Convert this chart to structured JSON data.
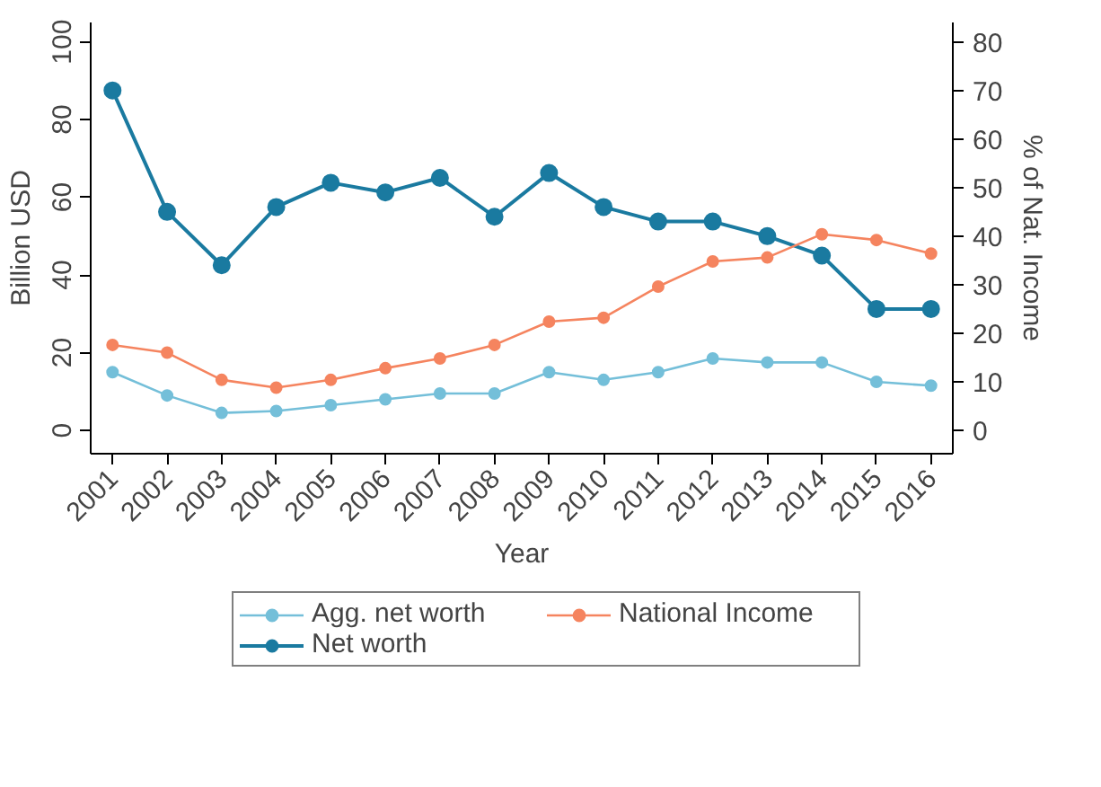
{
  "chart_data": {
    "type": "line",
    "xlabel": "Year",
    "ylabel": "Billion USD",
    "y2label": "% of Nat. Income",
    "x": [
      2001,
      2002,
      2003,
      2004,
      2005,
      2006,
      2007,
      2008,
      2009,
      2010,
      2011,
      2012,
      2013,
      2014,
      2015,
      2016
    ],
    "xlim": [
      2000.6,
      2016.4
    ],
    "xticks": [
      2001,
      2002,
      2003,
      2004,
      2005,
      2006,
      2007,
      2008,
      2009,
      2010,
      2011,
      2012,
      2013,
      2014,
      2015,
      2016
    ],
    "ylim": [
      -6,
      105
    ],
    "yticks": [
      0,
      20,
      40,
      60,
      80,
      100
    ],
    "y2lim": [
      -4.8,
      84
    ],
    "y2ticks": [
      0,
      10,
      20,
      30,
      40,
      50,
      60,
      70,
      80
    ],
    "marker": "circle",
    "grid": false,
    "legend": "bottom",
    "series": [
      {
        "name": "Agg. net worth",
        "color": "#74bfd9",
        "values": [
          15,
          9,
          4.5,
          5,
          6.5,
          8,
          9.5,
          9.5,
          15,
          13,
          15,
          18.5,
          17.5,
          17.5,
          12.5,
          11.5
        ]
      },
      {
        "name": "Net worth",
        "color": "#1a7aa0",
        "axis": "y2",
        "values": [
          70,
          45,
          34,
          46,
          51,
          49,
          52,
          44,
          53,
          46,
          43,
          43,
          40,
          36,
          25,
          25
        ]
      },
      {
        "name": "National Income",
        "color": "#f5845f",
        "values": [
          22,
          20,
          13,
          11,
          13,
          16,
          18.5,
          22,
          28,
          29,
          37,
          43.5,
          44.5,
          50.5,
          49,
          45.5
        ]
      }
    ]
  }
}
